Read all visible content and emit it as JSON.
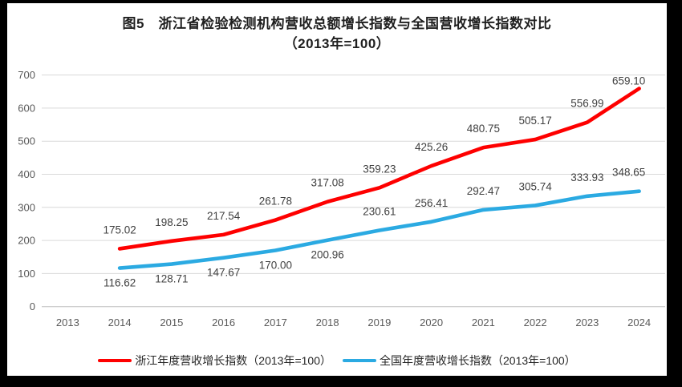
{
  "window": {
    "frame_color": "#000000",
    "panel_background": "#ffffff"
  },
  "title": {
    "line1": "图5　浙江省检验检测机构营收总额增长指数与全国营收增长指数对比",
    "line2": "（2013年=100）"
  },
  "chart_data": {
    "type": "line",
    "title": "图5 浙江省检验检测机构营收总额增长指数与全国营收增长指数对比（2013年=100）",
    "categories": [
      2013,
      2014,
      2015,
      2016,
      2017,
      2018,
      2019,
      2020,
      2021,
      2022,
      2023,
      2024
    ],
    "x": [
      2014,
      2015,
      2016,
      2017,
      2018,
      2019,
      2020,
      2021,
      2022,
      2023,
      2024
    ],
    "series": [
      {
        "key": "zhejiang",
        "name": "浙江年度营收增长指数（2013年=100）",
        "color": "#fe0000",
        "values": [
          175.02,
          198.25,
          217.54,
          261.78,
          317.08,
          359.23,
          425.26,
          480.75,
          505.17,
          556.99,
          659.1
        ],
        "label_side": "above"
      },
      {
        "key": "national",
        "name": "全国年度营收增长指数（2013年=100）",
        "color": "#2baae2",
        "values": [
          116.62,
          128.71,
          147.67,
          170.0,
          200.96,
          230.61,
          256.41,
          292.47,
          305.74,
          333.93,
          348.65
        ],
        "label_side": [
          "below",
          "below",
          "below",
          "below",
          "below",
          "above",
          "above",
          "above",
          "above",
          "above",
          "above"
        ]
      }
    ],
    "xlabel": "",
    "ylabel": "",
    "ylim": [
      0,
      700
    ],
    "ytick_step": 100,
    "yticks": [
      0,
      100,
      200,
      300,
      400,
      500,
      600,
      700
    ],
    "grid": "horizontal",
    "gridline_color": "#d9d9d9",
    "axis_label_color": "#595959",
    "data_label_color": "#404040",
    "value_label_decimals": 2,
    "legend_position": "bottom"
  }
}
